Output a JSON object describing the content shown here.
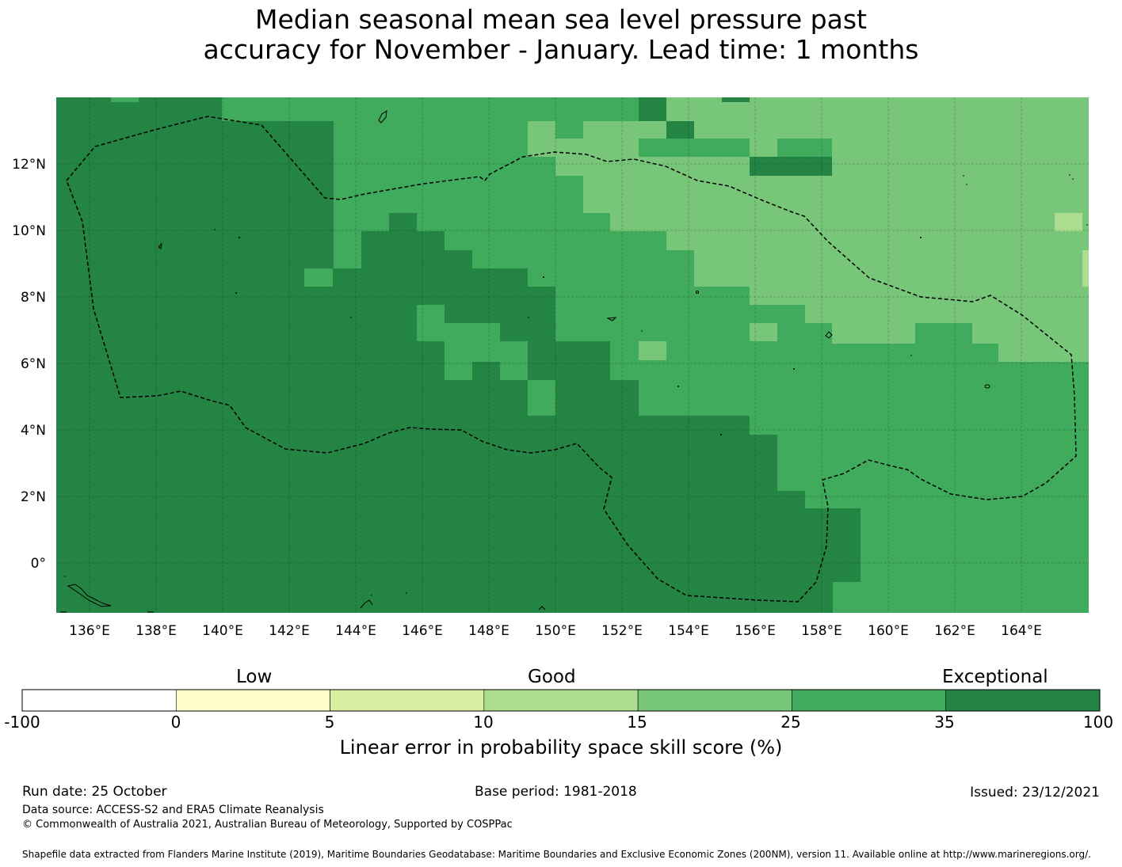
{
  "title": {
    "line1": "Median seasonal mean sea level pressure past",
    "line2": "accuracy for November - January. Lead time: 1 months"
  },
  "map": {
    "lat_ticks": [
      "12°N",
      "10°N",
      "8°N",
      "6°N",
      "4°N",
      "2°N",
      "0°"
    ],
    "lon_ticks": [
      "136°E",
      "138°E",
      "140°E",
      "142°E",
      "144°E",
      "146°E",
      "148°E",
      "150°E",
      "152°E",
      "154°E",
      "156°E",
      "158°E",
      "160°E",
      "162°E",
      "164°E"
    ],
    "extent": {
      "lon_min": 135.0,
      "lon_max": 166.0,
      "lat_min": -1.5,
      "lat_max": 14.0
    },
    "skill_field_summary": "Exceptional (35-100%) skill west of ~150°E and south of ~4°N; Good (25-35%) in the central band; 15-25% in the northeast"
  },
  "colorbar": {
    "categories": [
      "Low",
      "Good",
      "Exceptional"
    ],
    "bounds": [
      "-100",
      "0",
      "5",
      "10",
      "15",
      "25",
      "35",
      "100"
    ],
    "colors": [
      "#ffffff",
      "#ffffcc",
      "#d9f0a3",
      "#addd8e",
      "#78c679",
      "#41ab5d",
      "#238443"
    ],
    "label": "Linear error in probability space skill score (%)"
  },
  "footer": {
    "run_date": "Run date: 25 October",
    "base_period": "Base period: 1981-2018",
    "issued": "Issued: 23/12/2021",
    "data_source": "Data source: ACCESS-S2 and ERA5 Climate Reanalysis",
    "copyright": "© Commonwealth of Australia 2021, Australian Bureau of Meteorology, Supported by COSPPac",
    "shapefile": "Shapefile data extracted from Flanders Marine Institute (2019), Maritime Boundaries Geodatabase: Maritime Boundaries and Exclusive Economic Zones (200NM), version 11. Available online at http://www.marineregions.org/."
  }
}
